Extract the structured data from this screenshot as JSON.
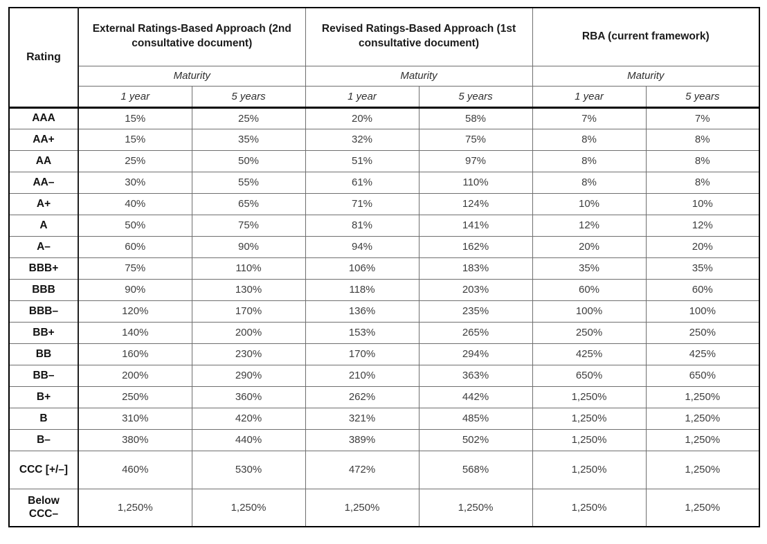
{
  "colors": {
    "background": "#ffffff",
    "frame_border": "#000000",
    "grid_line": "#6e6e6e",
    "group_separator": "#1f1f1f",
    "header_text": "#1a1a1a",
    "value_text": "#3d3d3d"
  },
  "chart_data": {
    "type": "table",
    "row_header": "Rating",
    "column_groups": [
      "External Ratings-Based Approach (2nd consultative document)",
      "Revised Ratings-Based Approach (1st consultative document)",
      "RBA (current framework)"
    ],
    "subheader_label": "Maturity",
    "subcolumns": [
      "1 year",
      "5 years"
    ],
    "rows": [
      {
        "rating": "AAA",
        "values": [
          "15%",
          "25%",
          "20%",
          "58%",
          "7%",
          "7%"
        ]
      },
      {
        "rating": "AA+",
        "values": [
          "15%",
          "35%",
          "32%",
          "75%",
          "8%",
          "8%"
        ]
      },
      {
        "rating": "AA",
        "values": [
          "25%",
          "50%",
          "51%",
          "97%",
          "8%",
          "8%"
        ]
      },
      {
        "rating": "AA–",
        "values": [
          "30%",
          "55%",
          "61%",
          "110%",
          "8%",
          "8%"
        ]
      },
      {
        "rating": "A+",
        "values": [
          "40%",
          "65%",
          "71%",
          "124%",
          "10%",
          "10%"
        ]
      },
      {
        "rating": "A",
        "values": [
          "50%",
          "75%",
          "81%",
          "141%",
          "12%",
          "12%"
        ]
      },
      {
        "rating": "A–",
        "values": [
          "60%",
          "90%",
          "94%",
          "162%",
          "20%",
          "20%"
        ]
      },
      {
        "rating": "BBB+",
        "values": [
          "75%",
          "110%",
          "106%",
          "183%",
          "35%",
          "35%"
        ]
      },
      {
        "rating": "BBB",
        "values": [
          "90%",
          "130%",
          "118%",
          "203%",
          "60%",
          "60%"
        ]
      },
      {
        "rating": "BBB–",
        "values": [
          "120%",
          "170%",
          "136%",
          "235%",
          "100%",
          "100%"
        ]
      },
      {
        "rating": "BB+",
        "values": [
          "140%",
          "200%",
          "153%",
          "265%",
          "250%",
          "250%"
        ]
      },
      {
        "rating": "BB",
        "values": [
          "160%",
          "230%",
          "170%",
          "294%",
          "425%",
          "425%"
        ]
      },
      {
        "rating": "BB–",
        "values": [
          "200%",
          "290%",
          "210%",
          "363%",
          "650%",
          "650%"
        ]
      },
      {
        "rating": "B+",
        "values": [
          "250%",
          "360%",
          "262%",
          "442%",
          "1,250%",
          "1,250%"
        ]
      },
      {
        "rating": "B",
        "values": [
          "310%",
          "420%",
          "321%",
          "485%",
          "1,250%",
          "1,250%"
        ]
      },
      {
        "rating": "B–",
        "values": [
          "380%",
          "440%",
          "389%",
          "502%",
          "1,250%",
          "1,250%"
        ]
      },
      {
        "rating": "CCC [+/–]",
        "values": [
          "460%",
          "530%",
          "472%",
          "568%",
          "1,250%",
          "1,250%"
        ]
      },
      {
        "rating": "Below CCC–",
        "values": [
          "1,250%",
          "1,250%",
          "1,250%",
          "1,250%",
          "1,250%",
          "1,250%"
        ]
      }
    ]
  }
}
